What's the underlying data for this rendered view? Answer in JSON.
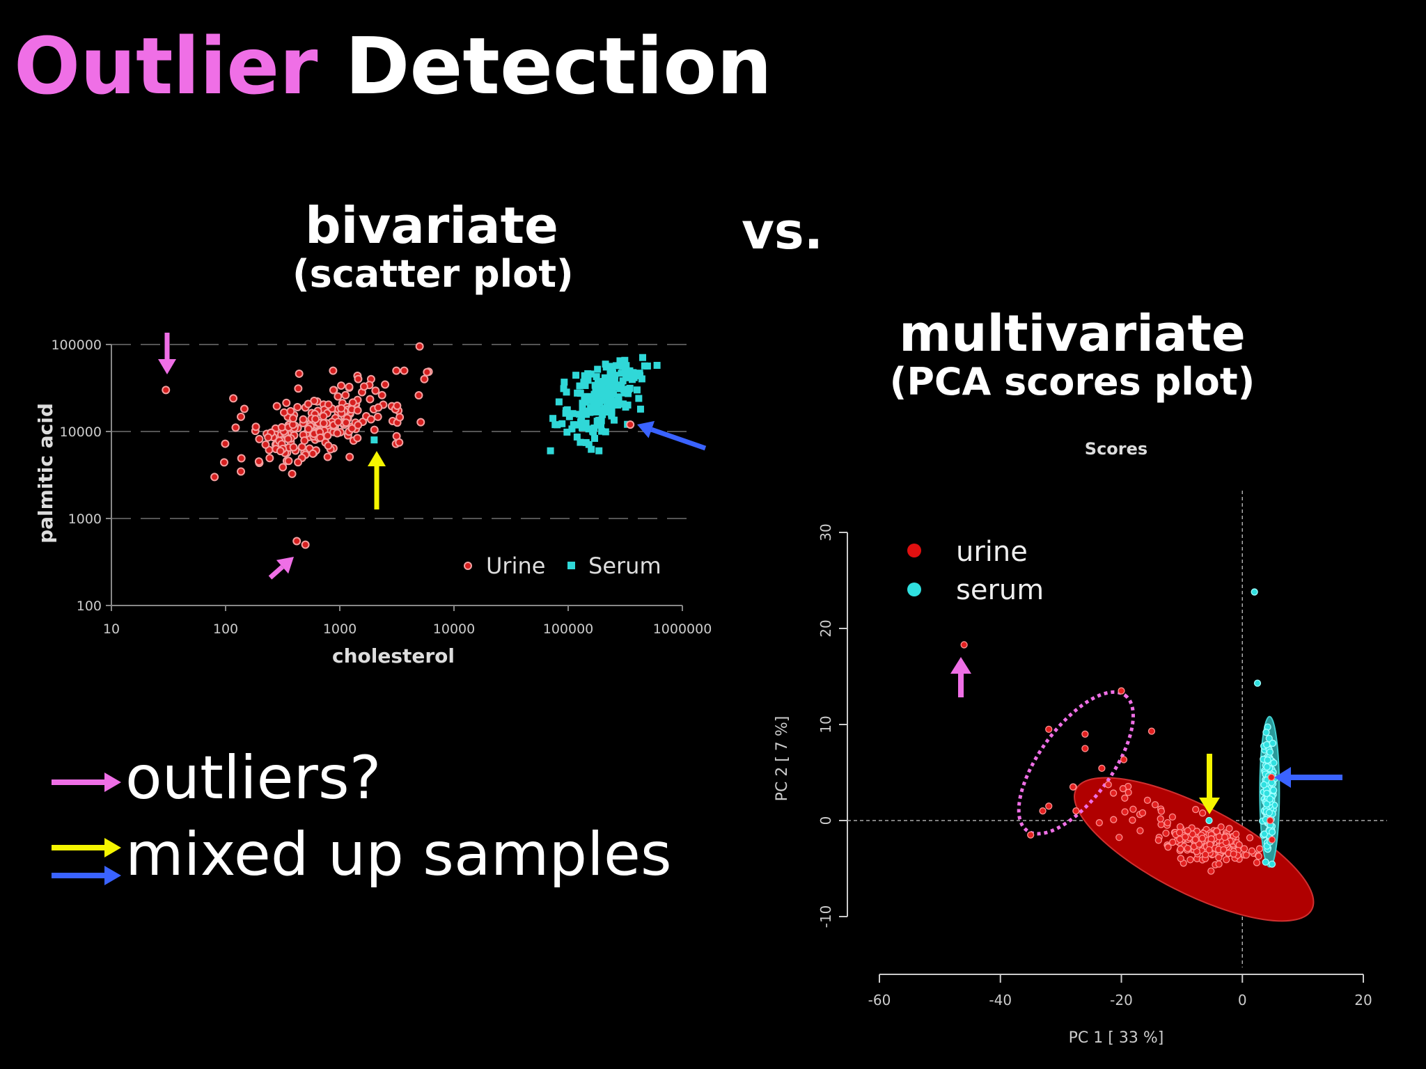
{
  "slide": {
    "title_highlight": "Outlier",
    "title_rest": "Detection",
    "bivariate_heading": "bivariate",
    "bivariate_subheading": "(scatter plot)",
    "vs_label": "vs.",
    "multivariate_heading": "multivariate",
    "multivariate_subheading": "(PCA scores plot)",
    "legend_outliers": "outliers?",
    "legend_mixed": "mixed up samples"
  },
  "colors": {
    "title_highlight": "#ef6fe6",
    "outlier_arrow": "#ef6fe6",
    "mixed_arrow_yellow": "#f5f500",
    "mixed_arrow_blue": "#3a63ff",
    "urine": "#d61f1f",
    "serum": "#30d8d8"
  },
  "chart_data": [
    {
      "type": "scatter",
      "title": "",
      "xlabel": "cholesterol",
      "ylabel": "palmitic acid",
      "xscale": "log",
      "yscale": "log",
      "xlim": [
        10,
        1000000
      ],
      "ylim": [
        100,
        100000
      ],
      "xticks": [
        "10",
        "100",
        "1000",
        "10000",
        "100000",
        "1000000"
      ],
      "yticks": [
        "100",
        "1000",
        "10000",
        "100000"
      ],
      "grid": "horizontal dashed",
      "legend": {
        "placement": "bottom-right",
        "entries": [
          "Urine",
          "Serum"
        ]
      },
      "series": [
        {
          "name": "Urine",
          "cluster": {
            "x_range": [
              80,
              6000
            ],
            "y_range": [
              3000,
              50000
            ]
          },
          "outliers": [
            [
              30,
              30000
            ],
            [
              420,
              550
            ],
            [
              500,
              500
            ],
            [
              5000,
              95000
            ],
            [
              5500,
              40000
            ]
          ]
        },
        {
          "name": "Serum",
          "cluster": {
            "x_range": [
              70000,
              600000
            ],
            "y_range": [
              6000,
              95000
            ]
          },
          "mixed": [
            [
              2000,
              8000
            ]
          ]
        }
      ]
    },
    {
      "type": "scatter",
      "title": "Scores",
      "xlabel": "PC 1 [ 33 %]",
      "ylabel": "PC 2 [ 7 %]",
      "xlim": [
        -60,
        20
      ],
      "ylim": [
        -10,
        30
      ],
      "xticks": [
        "-60",
        "-40",
        "-20",
        "0",
        "20"
      ],
      "yticks": [
        "-10",
        "0",
        "10",
        "20",
        "30"
      ],
      "legend": {
        "placement": "top-left",
        "entries": [
          "urine",
          "serum"
        ]
      },
      "series": [
        {
          "name": "urine",
          "cluster_center": [
            -8,
            -3
          ],
          "outliers": [
            [
              -46,
              18.3
            ],
            [
              -20,
              13.5
            ],
            [
              -32,
              9.5
            ],
            [
              -26,
              9
            ],
            [
              -15,
              9.3
            ],
            [
              -26,
              7.5
            ],
            [
              -28,
              3.5
            ],
            [
              -32,
              1.5
            ],
            [
              -33,
              1
            ],
            [
              -35,
              -1.5
            ],
            [
              -27.5,
              1
            ]
          ]
        },
        {
          "name": "serum",
          "cluster_center": [
            4.5,
            3
          ],
          "outliers": [
            [
              2,
              23.8
            ],
            [
              2.5,
              14.3
            ]
          ],
          "mixed": [
            [
              -5.5,
              0
            ]
          ]
        }
      ]
    }
  ]
}
